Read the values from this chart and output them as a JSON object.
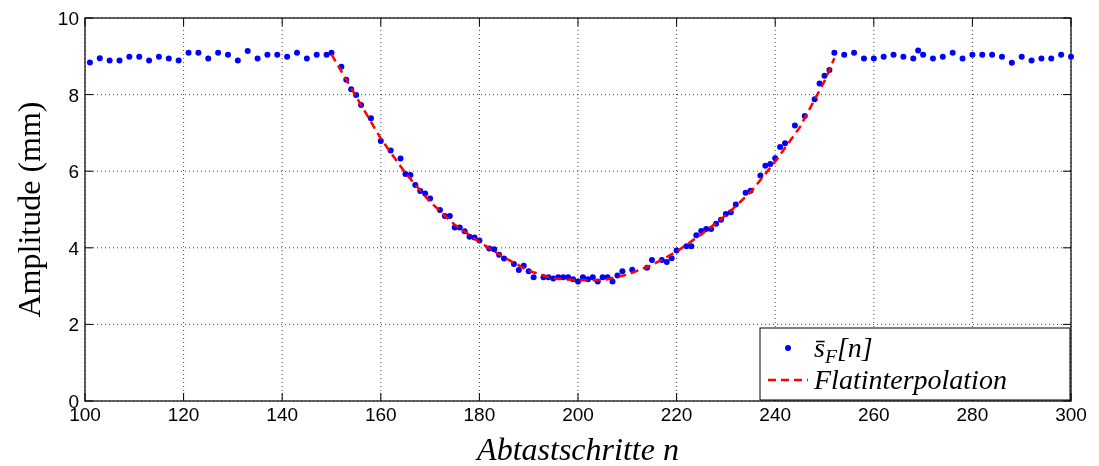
{
  "chart_data": {
    "type": "scatter",
    "xlabel": "Abtastschritte n",
    "ylabel": "Amplitude (mm)",
    "xlim": [
      100,
      300
    ],
    "xticks": [
      100,
      120,
      140,
      160,
      180,
      200,
      220,
      240,
      260,
      280,
      300
    ],
    "ylim": [
      0,
      10
    ],
    "yticks": [
      0,
      2,
      4,
      6,
      8,
      10
    ],
    "grid": true,
    "legend": "bottom right",
    "series": [
      {
        "name": "s̄$_{F}$[n]",
        "type": "scatter",
        "color": "#0000ff",
        "marker": "circle",
        "x": [
          101,
          103,
          105,
          107,
          109,
          111,
          113,
          115,
          117,
          119,
          121,
          123,
          125,
          127,
          129,
          131,
          133,
          135,
          137,
          139,
          141,
          143,
          145,
          147,
          149,
          150,
          152,
          153,
          154,
          155,
          156,
          158,
          160,
          162,
          164,
          165,
          166,
          167,
          168,
          169,
          170,
          172,
          173,
          174,
          175,
          176,
          177,
          178,
          179,
          180,
          182,
          183,
          184,
          185,
          187,
          188,
          189,
          190,
          191,
          193,
          194,
          195,
          196,
          197,
          198,
          199,
          200,
          201,
          202,
          203,
          204,
          205,
          206,
          207,
          208,
          209,
          211,
          214,
          215,
          217,
          218,
          219,
          220,
          222,
          223,
          224,
          225,
          226,
          227,
          228,
          229,
          230,
          231,
          232,
          234,
          235,
          237,
          238,
          239,
          240,
          241,
          242,
          244,
          246,
          248,
          249,
          250,
          251,
          252,
          254,
          256,
          258,
          260,
          262,
          264,
          266,
          268,
          269,
          270,
          272,
          274,
          276,
          278,
          280,
          282,
          284,
          286,
          288,
          290,
          292,
          294,
          296,
          298,
          300
        ],
        "values": [
          8.84,
          8.95,
          8.89,
          8.89,
          8.99,
          8.99,
          8.89,
          8.99,
          8.94,
          8.89,
          9.09,
          9.09,
          8.94,
          9.09,
          9.04,
          8.89,
          9.14,
          8.94,
          9.04,
          9.04,
          8.99,
          9.09,
          8.94,
          9.04,
          9.04,
          9.09,
          8.73,
          8.39,
          8.14,
          7.99,
          7.73,
          7.38,
          6.79,
          6.54,
          6.33,
          5.93,
          5.9,
          5.64,
          5.48,
          5.42,
          5.29,
          4.99,
          4.83,
          4.83,
          4.53,
          4.53,
          4.43,
          4.29,
          4.27,
          4.19,
          3.98,
          3.96,
          3.82,
          3.72,
          3.58,
          3.42,
          3.53,
          3.39,
          3.23,
          3.23,
          3.23,
          3.2,
          3.23,
          3.23,
          3.23,
          3.18,
          3.12,
          3.23,
          3.18,
          3.23,
          3.12,
          3.23,
          3.23,
          3.12,
          3.28,
          3.39,
          3.43,
          3.48,
          3.68,
          3.68,
          3.63,
          3.73,
          3.93,
          4.04,
          4.04,
          4.33,
          4.44,
          4.49,
          4.49,
          4.63,
          4.73,
          4.88,
          4.93,
          5.13,
          5.44,
          5.49,
          5.89,
          6.14,
          6.19,
          6.34,
          6.63,
          6.73,
          7.19,
          7.44,
          7.88,
          8.29,
          8.49,
          8.64,
          9.09,
          9.04,
          9.09,
          8.94,
          8.94,
          8.99,
          9.04,
          8.99,
          8.94,
          9.15,
          9.04,
          8.94,
          8.99,
          9.09,
          8.94,
          9.04,
          9.04,
          9.04,
          8.99,
          8.83,
          8.99,
          8.89,
          8.94,
          8.94,
          9.04,
          8.99
        ]
      },
      {
        "name": "Flatinterpolation",
        "type": "line",
        "color": "#ff0000",
        "line_style": "dashed",
        "marker": "none",
        "x": [
          150,
          155,
          160,
          165,
          170,
          175,
          180,
          185,
          190,
          195,
          200,
          205,
          210,
          215,
          220,
          225,
          230,
          235,
          240,
          245,
          250,
          252
        ],
        "values": [
          9.05,
          7.95,
          6.85,
          5.95,
          5.2,
          4.6,
          4.15,
          3.75,
          3.4,
          3.2,
          3.15,
          3.15,
          3.3,
          3.55,
          3.9,
          4.35,
          4.85,
          5.45,
          6.25,
          7.15,
          8.35,
          8.95
        ]
      }
    ]
  }
}
